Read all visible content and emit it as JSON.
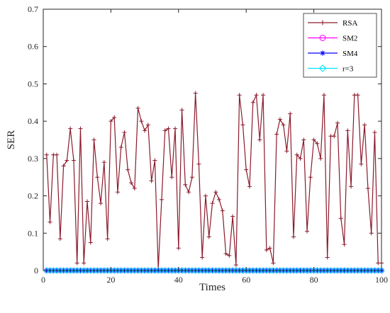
{
  "chart_data": {
    "type": "line",
    "title": "",
    "xlabel": "Times",
    "ylabel": "SER",
    "xlim": [
      0,
      100
    ],
    "ylim": [
      0,
      0.7
    ],
    "xticks": [
      0,
      20,
      40,
      60,
      80,
      100
    ],
    "yticks": [
      0,
      0.1,
      0.2,
      0.3,
      0.4,
      0.5,
      0.6,
      0.7
    ],
    "xtick_labels": [
      "0",
      "20",
      "40",
      "60",
      "80",
      "100"
    ],
    "ytick_labels": [
      "0",
      "0.1",
      "0.2",
      "0.3",
      "0.4",
      "0.5",
      "0.6",
      "0.7"
    ],
    "grid": false,
    "legend_position": "top-right",
    "x": [
      1,
      2,
      3,
      4,
      5,
      6,
      7,
      8,
      9,
      10,
      11,
      12,
      13,
      14,
      15,
      16,
      17,
      18,
      19,
      20,
      21,
      22,
      23,
      24,
      25,
      26,
      27,
      28,
      29,
      30,
      31,
      32,
      33,
      34,
      35,
      36,
      37,
      38,
      39,
      40,
      41,
      42,
      43,
      44,
      45,
      46,
      47,
      48,
      49,
      50,
      51,
      52,
      53,
      54,
      55,
      56,
      57,
      58,
      59,
      60,
      61,
      62,
      63,
      64,
      65,
      66,
      67,
      68,
      69,
      70,
      71,
      72,
      73,
      74,
      75,
      76,
      77,
      78,
      79,
      80,
      81,
      82,
      83,
      84,
      85,
      86,
      87,
      88,
      89,
      90,
      91,
      92,
      93,
      94,
      95,
      96,
      97,
      98,
      99,
      100
    ],
    "series": [
      {
        "name": "RSA",
        "color": "#8b1a2b",
        "marker": "plus",
        "values": [
          0.31,
          0.13,
          0.31,
          0.31,
          0.085,
          0.28,
          0.295,
          0.38,
          0.295,
          0.02,
          0.38,
          0.02,
          0.185,
          0.075,
          0.35,
          0.25,
          0.18,
          0.29,
          0.085,
          0.4,
          0.41,
          0.21,
          0.33,
          0.37,
          0.27,
          0.235,
          0.22,
          0.435,
          0.4,
          0.375,
          0.39,
          0.24,
          0.295,
          0.005,
          0.19,
          0.375,
          0.38,
          0.25,
          0.38,
          0.06,
          0.43,
          0.23,
          0.21,
          0.25,
          0.475,
          0.285,
          0.035,
          0.2,
          0.09,
          0.18,
          0.21,
          0.19,
          0.16,
          0.045,
          0.04,
          0.145,
          0.015,
          0.47,
          0.39,
          0.27,
          0.225,
          0.45,
          0.47,
          0.35,
          0.47,
          0.055,
          0.06,
          0.02,
          0.365,
          0.405,
          0.39,
          0.32,
          0.42,
          0.09,
          0.31,
          0.3,
          0.35,
          0.105,
          0.25,
          0.35,
          0.34,
          0.3,
          0.47,
          0.035,
          0.36,
          0.36,
          0.395,
          0.14,
          0.07,
          0.375,
          0.225,
          0.47,
          0.47,
          0.285,
          0.39,
          0.22,
          0.1,
          0.37,
          0.02,
          0.02
        ]
      },
      {
        "name": "SM2",
        "color": "#ff00ff",
        "marker": "circle",
        "values": [
          0,
          0,
          0,
          0,
          0,
          0,
          0,
          0,
          0,
          0,
          0,
          0,
          0,
          0,
          0,
          0,
          0,
          0,
          0,
          0,
          0,
          0,
          0,
          0,
          0,
          0,
          0,
          0,
          0,
          0,
          0,
          0,
          0,
          0,
          0,
          0,
          0,
          0,
          0,
          0,
          0,
          0,
          0,
          0,
          0,
          0,
          0,
          0,
          0,
          0,
          0,
          0,
          0,
          0,
          0,
          0,
          0,
          0,
          0,
          0,
          0,
          0,
          0,
          0,
          0,
          0,
          0,
          0,
          0,
          0,
          0,
          0,
          0,
          0,
          0,
          0,
          0,
          0,
          0,
          0,
          0,
          0,
          0,
          0,
          0,
          0,
          0,
          0,
          0,
          0,
          0,
          0,
          0,
          0,
          0,
          0,
          0,
          0,
          0,
          0
        ]
      },
      {
        "name": "SM4",
        "color": "#0000ff",
        "marker": "star",
        "values": [
          0,
          0,
          0,
          0,
          0,
          0,
          0,
          0,
          0,
          0,
          0,
          0,
          0,
          0,
          0,
          0,
          0,
          0,
          0,
          0,
          0,
          0,
          0,
          0,
          0,
          0,
          0,
          0,
          0,
          0,
          0,
          0,
          0,
          0,
          0,
          0,
          0,
          0,
          0,
          0,
          0,
          0,
          0,
          0,
          0,
          0,
          0,
          0,
          0,
          0,
          0,
          0,
          0,
          0,
          0,
          0,
          0,
          0,
          0,
          0,
          0,
          0,
          0,
          0,
          0,
          0,
          0,
          0,
          0,
          0,
          0,
          0,
          0,
          0,
          0,
          0,
          0,
          0,
          0,
          0,
          0,
          0,
          0,
          0,
          0,
          0,
          0,
          0,
          0,
          0,
          0,
          0,
          0,
          0,
          0,
          0,
          0,
          0,
          0,
          0
        ]
      },
      {
        "name": "r=3",
        "color": "#00e5ff",
        "marker": "diamond",
        "values": [
          0,
          0,
          0,
          0,
          0,
          0,
          0,
          0,
          0,
          0,
          0,
          0,
          0,
          0,
          0,
          0,
          0,
          0,
          0,
          0,
          0,
          0,
          0,
          0,
          0,
          0,
          0,
          0,
          0,
          0,
          0,
          0,
          0,
          0,
          0,
          0,
          0,
          0,
          0,
          0,
          0,
          0,
          0,
          0,
          0,
          0,
          0,
          0,
          0,
          0,
          0,
          0,
          0,
          0,
          0,
          0,
          0,
          0,
          0,
          0,
          0,
          0,
          0,
          0,
          0,
          0,
          0,
          0,
          0,
          0,
          0,
          0,
          0,
          0,
          0,
          0,
          0,
          0,
          0,
          0,
          0,
          0,
          0,
          0,
          0,
          0,
          0,
          0,
          0,
          0,
          0,
          0,
          0,
          0,
          0,
          0,
          0,
          0,
          0,
          0
        ]
      }
    ]
  }
}
